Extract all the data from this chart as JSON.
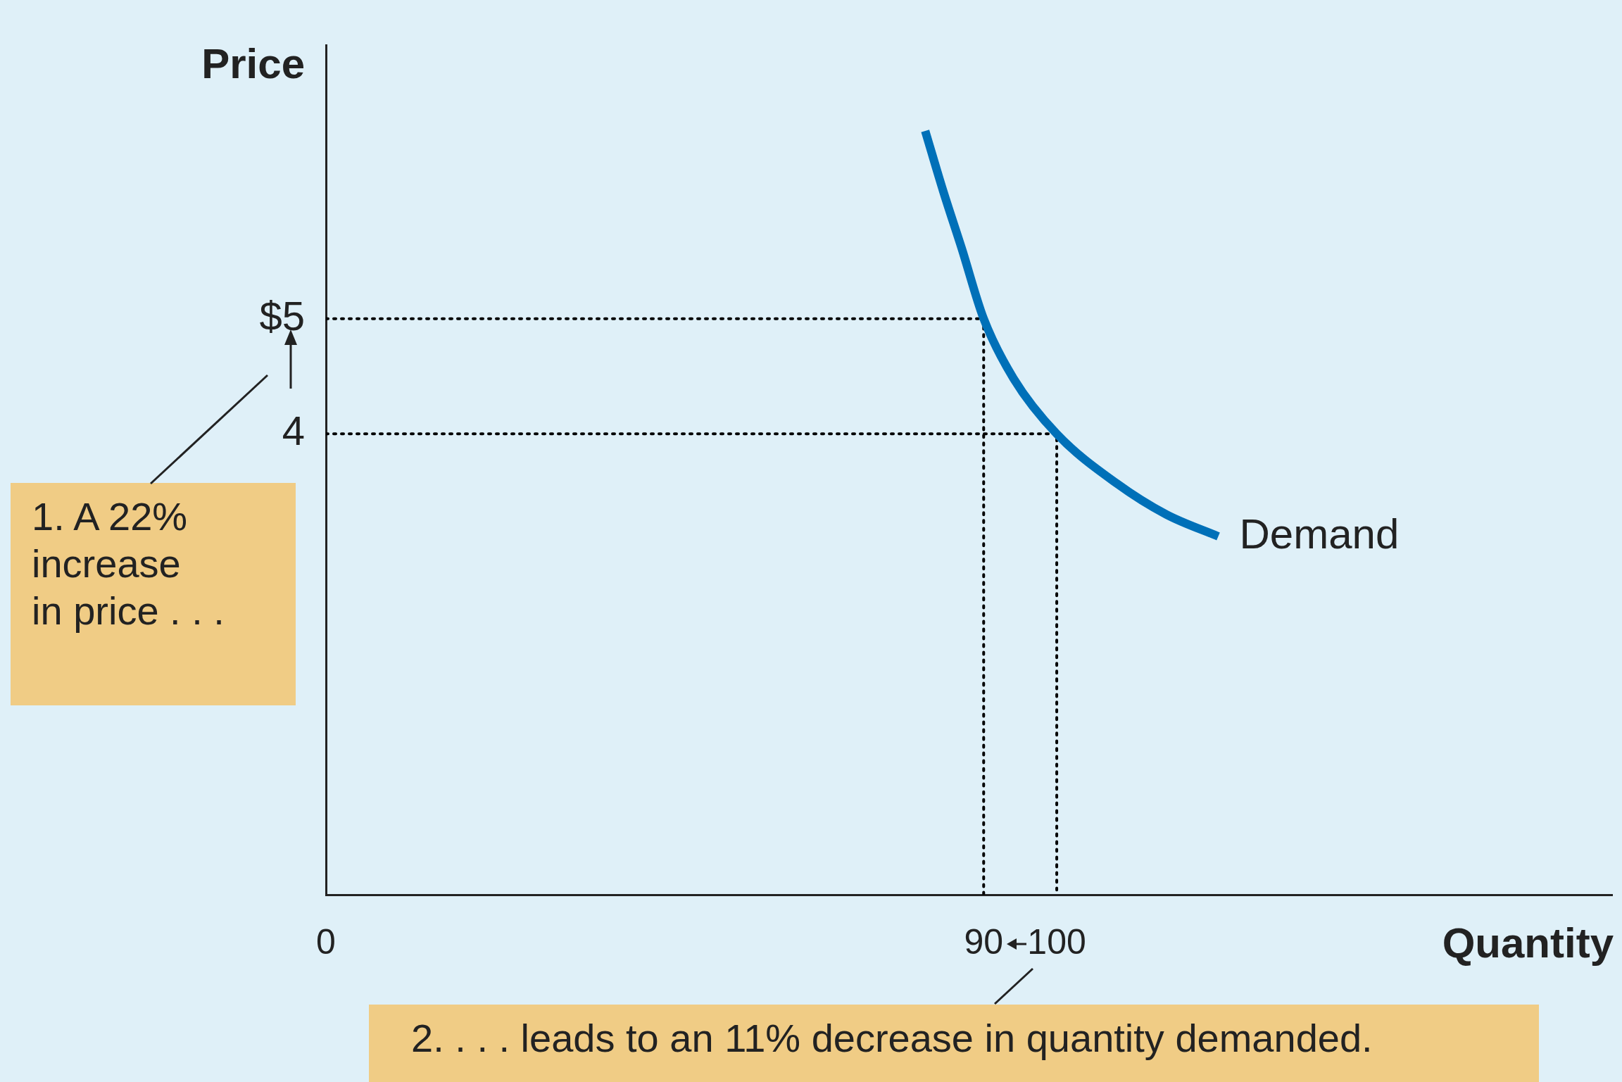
{
  "chart_data": {
    "type": "line",
    "xlabel": "Quantity",
    "ylabel": "Price",
    "xlim": [
      0,
      176
    ],
    "ylim": [
      0,
      7.37
    ],
    "xticks": [
      0,
      90,
      100
    ],
    "yticks": [
      4,
      {
        "value": 5,
        "label": "$5"
      }
    ],
    "grid": false,
    "marker": "none",
    "series": [
      {
        "name": "Demand",
        "color": "#0070b8",
        "x": [
          82,
          84.5,
          87,
          90,
          94.1,
          100,
          108.2,
          115,
          122.1
        ],
        "values": [
          6.63,
          6.1,
          5.61,
          5,
          4.48,
          4,
          3.57,
          3.3,
          3.11
        ]
      },
      {
        "color": "#000000",
        "line_style": "dotted",
        "x": [
          0,
          90,
          90
        ],
        "values": [
          5,
          5,
          0
        ]
      },
      {
        "color": "#000000",
        "line_style": "dotted",
        "x": [
          0,
          100,
          100
        ],
        "values": [
          4,
          4,
          0
        ]
      }
    ],
    "annotations": [
      "1. A 22%\nincrease\nin price . . .",
      "2. . . . leads to an 11% decrease in quantity demanded."
    ]
  }
}
